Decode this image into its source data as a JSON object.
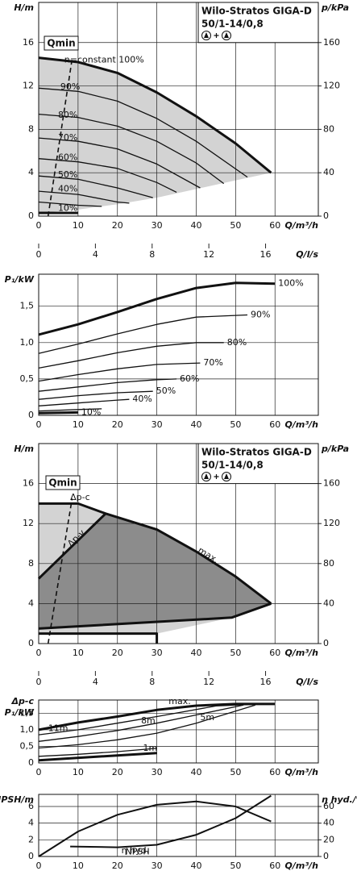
{
  "chart_data": [
    {
      "type": "line",
      "title": "Wilo-Stratos GIGA-D",
      "subtitle": "50/1-14/0,8",
      "ylabel": "H/m",
      "y2label": "p/kPa",
      "xlabel": "Q/m³/h",
      "x2label": "Q/l/s",
      "xlim": [
        0,
        71
      ],
      "xticks": [
        0,
        10,
        20,
        30,
        40,
        50,
        60
      ],
      "x2lim": [
        0,
        19.72
      ],
      "x2ticks": [
        0,
        4,
        8,
        12,
        16
      ],
      "ylim": [
        0,
        19.7
      ],
      "yticks": [
        0,
        4,
        8,
        12,
        16
      ],
      "y2lim": [
        0,
        197
      ],
      "y2ticks": [
        0,
        40,
        80,
        120,
        160
      ],
      "grid": true,
      "annotations": [
        {
          "text": "Qmin"
        }
      ],
      "series": [
        {
          "color": "#d3d3d3",
          "fill": true,
          "x": [
            0,
            10,
            20,
            30,
            40,
            50,
            59,
            50,
            40,
            30,
            20,
            10,
            0
          ],
          "values": [
            14.6,
            14.2,
            13.2,
            11.4,
            9.2,
            6.7,
            4,
            3.3,
            2.5,
            1.7,
            1.1,
            0.6,
            0.3
          ]
        },
        {
          "name": "n=constant 100%",
          "color": "#111111",
          "thick": true,
          "x": [
            0,
            10,
            20,
            30,
            40,
            50,
            59
          ],
          "values": [
            14.6,
            14.2,
            13.2,
            11.4,
            9.2,
            6.7,
            4
          ]
        },
        {
          "name": "90%",
          "color": "#111111",
          "x": [
            0,
            10,
            20,
            30,
            40,
            53
          ],
          "values": [
            11.8,
            11.5,
            10.6,
            9.0,
            6.9,
            3.6
          ]
        },
        {
          "name": "80%",
          "color": "#111111",
          "x": [
            0,
            10,
            20,
            30,
            40,
            47
          ],
          "values": [
            9.4,
            9.1,
            8.3,
            6.9,
            4.9,
            3.0
          ]
        },
        {
          "name": "70%",
          "color": "#111111",
          "x": [
            0,
            10,
            20,
            30,
            41
          ],
          "values": [
            7.2,
            6.9,
            6.2,
            4.8,
            2.6
          ]
        },
        {
          "name": "60%",
          "color": "#111111",
          "x": [
            0,
            10,
            20,
            30,
            35
          ],
          "values": [
            5.3,
            5.0,
            4.4,
            3.1,
            2.2
          ]
        },
        {
          "name": "50%",
          "color": "#111111",
          "x": [
            0,
            10,
            20,
            29
          ],
          "values": [
            3.7,
            3.4,
            2.6,
            1.7
          ]
        },
        {
          "name": "40%",
          "color": "#111111",
          "x": [
            0,
            10,
            20,
            23
          ],
          "values": [
            2.3,
            2.0,
            1.3,
            1.2
          ]
        },
        {
          "color": "#111111",
          "x": [
            0,
            10,
            16
          ],
          "values": [
            1.3,
            1.0,
            0.9
          ]
        },
        {
          "name": "10%",
          "color": "#111111",
          "thick": true,
          "x": [
            0,
            10
          ],
          "values": [
            0.3,
            0.3
          ]
        },
        {
          "color": "#111111",
          "dashed": true,
          "x": [
            2.4,
            8.5
          ],
          "values": [
            0,
            14.5
          ]
        }
      ]
    },
    {
      "type": "line",
      "ylabel": "P₁/kW",
      "xlabel": "Q/m³/h",
      "xlim": [
        0,
        71
      ],
      "xticks": [
        0,
        10,
        20,
        30,
        40,
        50,
        60
      ],
      "ylim": [
        0,
        1.94
      ],
      "yticks": [
        0,
        {
          "value": 0.5,
          "label": "0,5"
        },
        {
          "value": 1,
          "label": "1,0"
        },
        {
          "value": 1.5,
          "label": "1,5"
        }
      ],
      "grid": true,
      "series": [
        {
          "name": "100%",
          "color": "#111111",
          "thick": true,
          "x": [
            0,
            10,
            20,
            30,
            40,
            50,
            60
          ],
          "values": [
            1.11,
            1.25,
            1.42,
            1.6,
            1.75,
            1.82,
            1.81
          ]
        },
        {
          "name": "90%",
          "color": "#111111",
          "x": [
            0,
            10,
            20,
            30,
            40,
            53
          ],
          "values": [
            0.85,
            0.98,
            1.12,
            1.25,
            1.35,
            1.38
          ]
        },
        {
          "name": "80%",
          "color": "#111111",
          "x": [
            0,
            10,
            20,
            30,
            40,
            47
          ],
          "values": [
            0.65,
            0.75,
            0.86,
            0.95,
            1.0,
            1.0
          ]
        },
        {
          "name": "70%",
          "color": "#111111",
          "x": [
            0,
            10,
            20,
            30,
            41
          ],
          "values": [
            0.47,
            0.56,
            0.64,
            0.7,
            0.72
          ]
        },
        {
          "name": "60%",
          "color": "#111111",
          "x": [
            0,
            10,
            20,
            30,
            35
          ],
          "values": [
            0.33,
            0.39,
            0.45,
            0.49,
            0.5
          ]
        },
        {
          "name": "50%",
          "color": "#111111",
          "x": [
            0,
            10,
            20,
            29
          ],
          "values": [
            0.22,
            0.27,
            0.31,
            0.33
          ]
        },
        {
          "name": "40%",
          "color": "#111111",
          "x": [
            0,
            10,
            20,
            23
          ],
          "values": [
            0.13,
            0.17,
            0.21,
            0.22
          ]
        },
        {
          "color": "#111111",
          "x": [
            0,
            10,
            16
          ],
          "values": [
            0.06,
            0.08,
            0.09
          ]
        },
        {
          "name": "10%",
          "color": "#111111",
          "thick": true,
          "x": [
            0,
            10
          ],
          "values": [
            0.03,
            0.04
          ]
        }
      ]
    },
    {
      "type": "line",
      "title": "Wilo-Stratos GIGA-D",
      "subtitle": "50/1-14/0,8",
      "ylabel": "H/m",
      "y2label": "p/kPa",
      "xlabel": "Q/m³/h",
      "x2label": "Q/l/s",
      "xlim": [
        0,
        71
      ],
      "xticks": [
        0,
        10,
        20,
        30,
        40,
        50,
        60
      ],
      "x2lim": [
        0,
        19.72
      ],
      "x2ticks": [
        0,
        4,
        8,
        12,
        16
      ],
      "ylim": [
        0,
        20
      ],
      "yticks": [
        0,
        4,
        8,
        12,
        16
      ],
      "y2lim": [
        0,
        200
      ],
      "y2ticks": [
        0,
        40,
        80,
        120,
        160
      ],
      "grid": true,
      "annotations": [
        {
          "text": "Qmin"
        },
        {
          "text": "Δp-c"
        }
      ],
      "series": [
        {
          "color": "#d3d3d3",
          "fill": true,
          "x": [
            0,
            10,
            17,
            30,
            40,
            50,
            59,
            49,
            30,
            0
          ],
          "values": [
            14,
            14,
            13,
            11.4,
            9.2,
            6.7,
            4,
            2.6,
            1,
            1
          ]
        },
        {
          "color": "#8c8c8c",
          "fill": true,
          "x": [
            0,
            17,
            30,
            40,
            50,
            59,
            49,
            0
          ],
          "values": [
            6.5,
            13,
            11.4,
            9.2,
            6.7,
            4,
            2.6,
            1.5
          ]
        },
        {
          "name": "max.",
          "color": "#111111",
          "thick": true,
          "x": [
            0,
            10,
            17,
            30,
            40,
            50,
            59
          ],
          "values": [
            14,
            14,
            13,
            11.4,
            9.2,
            6.7,
            4
          ]
        },
        {
          "name": "Δp-v",
          "color": "#111111",
          "thick": true,
          "x": [
            0,
            17
          ],
          "values": [
            6.5,
            13
          ]
        },
        {
          "color": "#111111",
          "thick": true,
          "x": [
            0,
            49,
            59
          ],
          "values": [
            1.5,
            2.6,
            4
          ]
        },
        {
          "color": "#111111",
          "thick": true,
          "x": [
            0,
            30,
            30
          ],
          "values": [
            1,
            1,
            0
          ]
        },
        {
          "color": "#111111",
          "dashed": true,
          "x": [
            2.4,
            8.5
          ],
          "values": [
            0,
            14.5
          ]
        }
      ]
    },
    {
      "type": "line",
      "ylabel_top": "Δp-c",
      "ylabel": "P₁/kW",
      "xlabel": "Q/m³/h",
      "xlim": [
        0,
        71
      ],
      "xticks": [
        0,
        10,
        20,
        30,
        40,
        50,
        60
      ],
      "ylim": [
        0,
        1.9
      ],
      "yticks": [
        0,
        {
          "value": 0.5,
          "label": "0,5"
        },
        {
          "value": 1,
          "label": "1,0"
        },
        {
          "value": 1.5,
          "label": "1,5"
        }
      ],
      "grid": true,
      "series": [
        {
          "name": "max.",
          "color": "#111111",
          "thick": true,
          "x": [
            0,
            10,
            20,
            30,
            40,
            50,
            60
          ],
          "values": [
            1.0,
            1.22,
            1.4,
            1.6,
            1.73,
            1.78,
            1.78
          ]
        },
        {
          "name": "11m",
          "color": "#111111",
          "x": [
            0,
            10,
            20,
            30,
            45,
            57
          ],
          "values": [
            0.85,
            1.0,
            1.2,
            1.4,
            1.72,
            1.78
          ]
        },
        {
          "name": "8m",
          "color": "#111111",
          "x": [
            0,
            10,
            20,
            30,
            40,
            52
          ],
          "values": [
            0.65,
            0.8,
            0.98,
            1.2,
            1.45,
            1.75
          ]
        },
        {
          "name": "5m",
          "color": "#111111",
          "x": [
            0,
            10,
            20,
            30,
            40,
            55
          ],
          "values": [
            0.45,
            0.55,
            0.7,
            0.9,
            1.2,
            1.75
          ]
        },
        {
          "name": "1m",
          "color": "#111111",
          "x": [
            0,
            10,
            20,
            30
          ],
          "values": [
            0.2,
            0.26,
            0.34,
            0.44
          ]
        },
        {
          "color": "#111111",
          "thick": true,
          "x": [
            0,
            30
          ],
          "values": [
            0.08,
            0.3
          ]
        }
      ]
    },
    {
      "type": "line",
      "ylabel": "NPSH/m",
      "y2label": "η hyd./%",
      "xlabel": "Q/m³/h",
      "xlim": [
        0,
        71
      ],
      "xticks": [
        0,
        10,
        20,
        30,
        40,
        50,
        60
      ],
      "ylim": [
        0,
        7.45
      ],
      "yticks": [
        0,
        2,
        4,
        6
      ],
      "y2lim": [
        0,
        74.5
      ],
      "y2ticks": [
        0,
        20,
        40,
        60
      ],
      "grid": true,
      "series": [
        {
          "name": "η hyd.",
          "color": "#111111",
          "axis": "y2",
          "x": [
            0,
            10,
            20,
            30,
            40,
            50,
            59
          ],
          "values": [
            0,
            30,
            50,
            62,
            66,
            60,
            42
          ]
        },
        {
          "name": "NPSH",
          "color": "#111111",
          "x": [
            8,
            20,
            30,
            40,
            50,
            59
          ],
          "values": [
            1.2,
            1.1,
            1.4,
            2.6,
            4.6,
            7.3
          ]
        }
      ]
    }
  ]
}
